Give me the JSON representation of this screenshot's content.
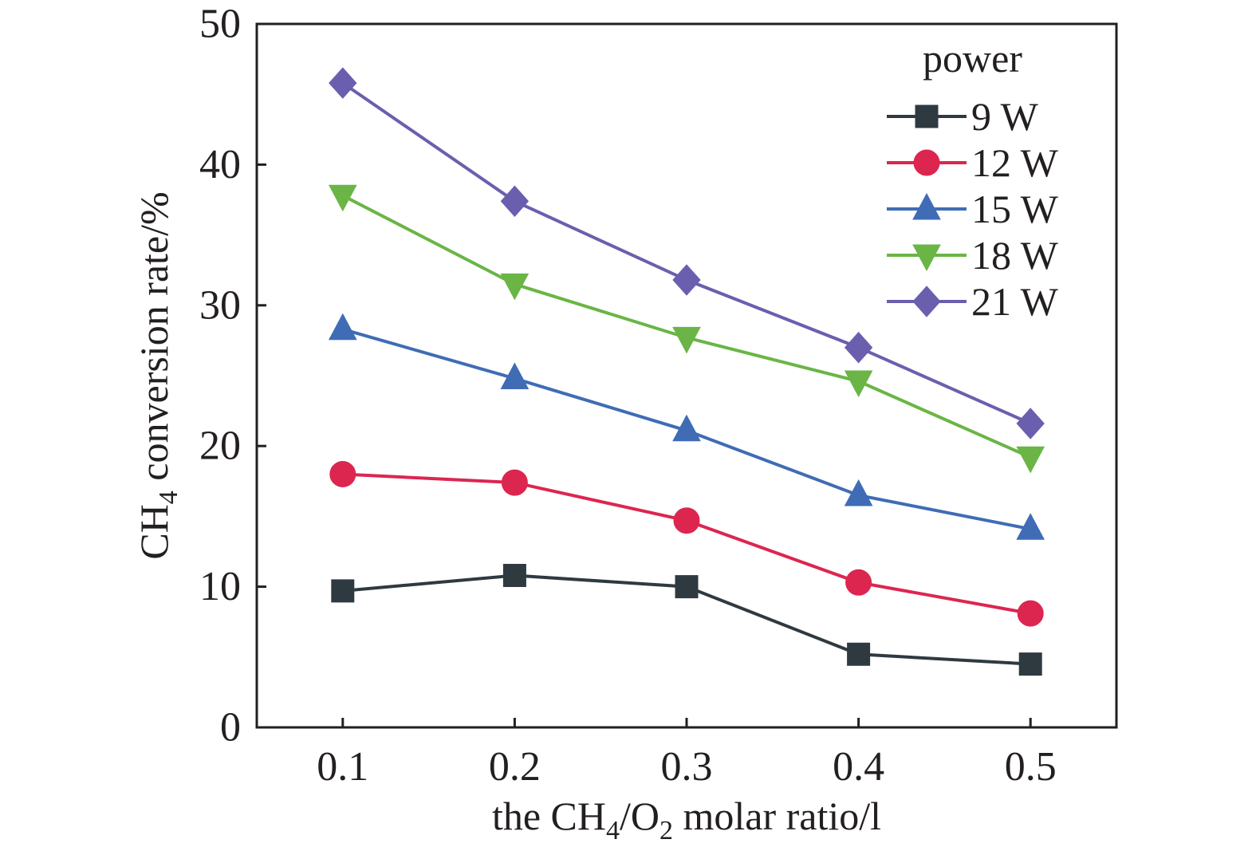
{
  "chart_data": {
    "type": "line",
    "x": [
      0.1,
      0.2,
      0.3,
      0.4,
      0.5
    ],
    "x_tick_labels": [
      "0.1",
      "0.2",
      "0.3",
      "0.4",
      "0.5"
    ],
    "y_tick_labels": [
      "0",
      "10",
      "20",
      "30",
      "40",
      "50"
    ],
    "xlim": [
      0.05,
      0.55
    ],
    "ylim": [
      0,
      50
    ],
    "xlabel": {
      "pre": "the CH",
      "sub1": "4",
      "mid": "/O",
      "sub2": "2",
      "post": " molar ratio/l"
    },
    "ylabel": {
      "pre": "CH",
      "sub": "4",
      "post": " conversion rate/%"
    },
    "legend": {
      "title": "power",
      "position": "top-right"
    },
    "grid": false,
    "series": [
      {
        "name": "9 W",
        "marker": "square",
        "color": "#2e3a40",
        "values": [
          9.7,
          10.8,
          10.0,
          5.2,
          4.5
        ]
      },
      {
        "name": "12 W",
        "marker": "circle",
        "color": "#dc2650",
        "values": [
          18.0,
          17.4,
          14.7,
          10.3,
          8.1
        ]
      },
      {
        "name": "15 W",
        "marker": "triangle-up",
        "color": "#3f6cb5",
        "values": [
          28.3,
          24.8,
          21.1,
          16.5,
          14.1
        ]
      },
      {
        "name": "18 W",
        "marker": "triangle-down",
        "color": "#6ab546",
        "values": [
          37.8,
          31.5,
          27.7,
          24.6,
          19.2
        ]
      },
      {
        "name": "21 W",
        "marker": "diamond",
        "color": "#6a5fae",
        "values": [
          45.8,
          37.4,
          31.8,
          27.0,
          21.6
        ]
      }
    ]
  }
}
